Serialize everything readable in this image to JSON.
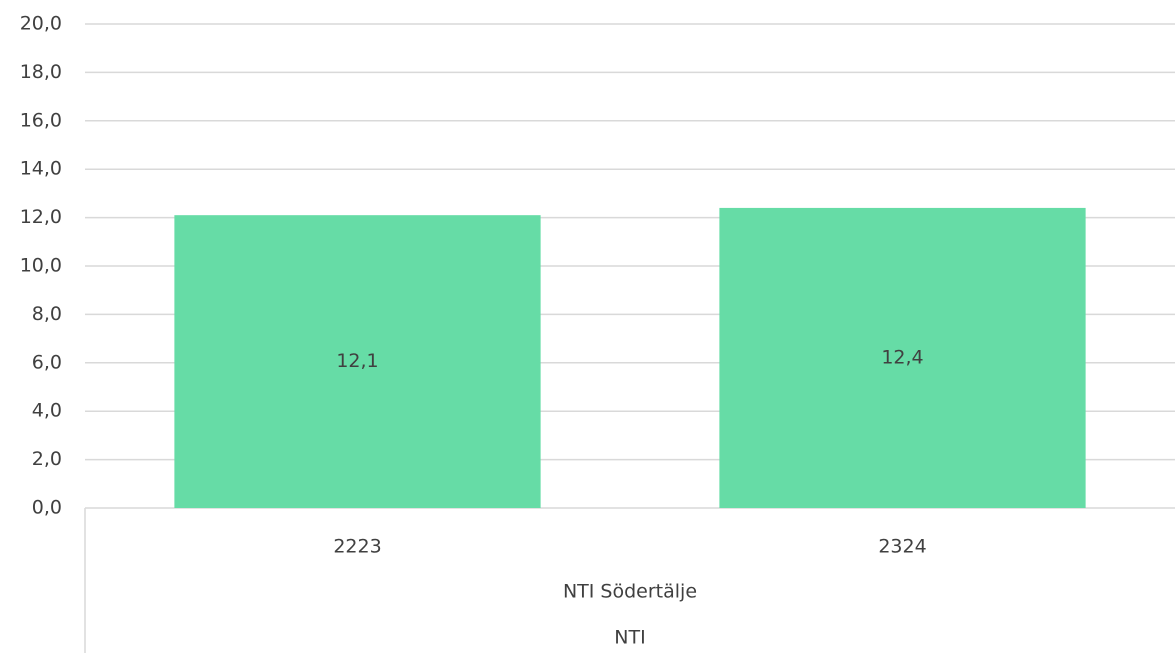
{
  "chart_data": {
    "type": "bar",
    "categories": [
      "2223",
      "2324"
    ],
    "x_group_labels": [
      "NTI Södertälje",
      "NTI"
    ],
    "values": [
      12.1,
      12.4
    ],
    "value_labels": [
      "12,1",
      "12,4"
    ],
    "color": "#66dca6",
    "ylim": [
      0,
      20
    ],
    "yticks": [
      {
        "value": 0,
        "label": "0,0"
      },
      {
        "value": 2,
        "label": "2,0"
      },
      {
        "value": 4,
        "label": "4,0"
      },
      {
        "value": 6,
        "label": "6,0"
      },
      {
        "value": 8,
        "label": "8,0"
      },
      {
        "value": 10,
        "label": "10,0"
      },
      {
        "value": 12,
        "label": "12,0"
      },
      {
        "value": 14,
        "label": "14,0"
      },
      {
        "value": 16,
        "label": "16,0"
      },
      {
        "value": 18,
        "label": "18,0"
      },
      {
        "value": 20,
        "label": "20,0"
      }
    ],
    "grid": true
  }
}
